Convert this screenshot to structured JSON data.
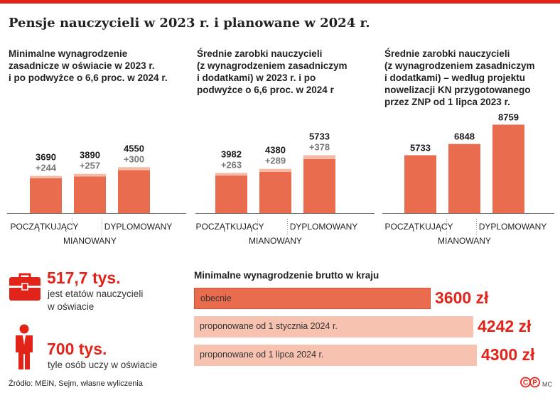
{
  "title": "Pensje nauczycieli w 2023 r. i planowane w 2024 r.",
  "panels": [
    {
      "title_lines": [
        "Minimalne wynagrodzenie",
        "zasadnicze w oświacie w 2023 r.",
        "i po podwyżce o 6,6 proc. w 2024 r."
      ]
    },
    {
      "title_lines": [
        "Średnie zarobki nauczycieli",
        "(z wynagrodzeniem zasadniczym",
        "i dodatkami) w 2023 r. i po",
        "podwyżce o 6,6 proc. w 2024 r"
      ]
    },
    {
      "title_lines": [
        "Średnie zarobki nauczycieli",
        "(z wynagrodzeniem zasadniczym",
        "i dodatkami) – według projektu",
        "nowelizacji KN przygotowanego",
        "przez ZNP od 1 lipca 2023 r."
      ]
    }
  ],
  "chart_data": [
    {
      "type": "bar",
      "categories": [
        "POCZĄTKUJĄCY",
        "MIANOWANY",
        "DYPLOMOWANY"
      ],
      "series": [
        {
          "values": [
            3446,
            3633,
            4250
          ]
        },
        {
          "values": [
            244,
            257,
            300
          ]
        }
      ],
      "totals": [
        3690,
        3890,
        4550
      ],
      "total_labels": [
        "3690",
        "3890",
        "4550"
      ],
      "increase_labels": [
        "+244",
        "+257",
        "+300"
      ],
      "ylim": [
        0,
        9000
      ],
      "stacked": true
    },
    {
      "type": "bar",
      "categories": [
        "POCZĄTKUJĄCY",
        "MIANOWANY",
        "DYPLOMOWANY"
      ],
      "series": [
        {
          "values": [
            3719,
            4091,
            5355
          ]
        },
        {
          "values": [
            263,
            289,
            378
          ]
        }
      ],
      "totals": [
        3982,
        4380,
        5733
      ],
      "total_labels": [
        "3982",
        "4380",
        "5733"
      ],
      "increase_labels": [
        "+263",
        "+289",
        "+378"
      ],
      "ylim": [
        0,
        9000
      ],
      "stacked": true
    },
    {
      "type": "bar",
      "categories": [
        "POCZĄTKUJĄCY",
        "MIANOWANY",
        "DYPLOMOWANY"
      ],
      "series": [
        {
          "values": [
            5733,
            6848,
            8759
          ]
        }
      ],
      "totals": [
        5733,
        6848,
        8759
      ],
      "total_labels": [
        "5733",
        "6848",
        "8759"
      ],
      "ylim": [
        0,
        9000
      ],
      "stacked": false
    },
    {
      "type": "bar",
      "orientation": "horizontal",
      "title": "Minimalne wynagrodzenie brutto w kraju",
      "categories": [
        "obecnie",
        "proponowane od 1 stycznia 2024 r.",
        "proponowane od 1 lipca 2024 r."
      ],
      "values": [
        3600,
        4242,
        4300
      ],
      "value_labels": [
        "3600 zł",
        "4242 zł",
        "4300 zł"
      ]
    }
  ],
  "stats": [
    {
      "icon": "briefcase-icon",
      "value": "517,7 tys.",
      "caption_lines": [
        "jest etatów nauczycieli",
        "w oświacie"
      ]
    },
    {
      "icon": "person-icon",
      "value": "700 tys.",
      "caption_lines": [
        "tyle osób uczy w oświacie"
      ]
    }
  ],
  "colors": {
    "accent": "#e2231a",
    "bar_base": "#ea6c4f",
    "bar_increase": "#f6b9a4",
    "wage_current": "#ea6c4f",
    "wage_proposed": "#f7c2af",
    "axis": "#777777"
  },
  "source": "Źródło: MEiN, Sejm, własne wyliczenia",
  "logo_text": "©P",
  "author": "MC"
}
